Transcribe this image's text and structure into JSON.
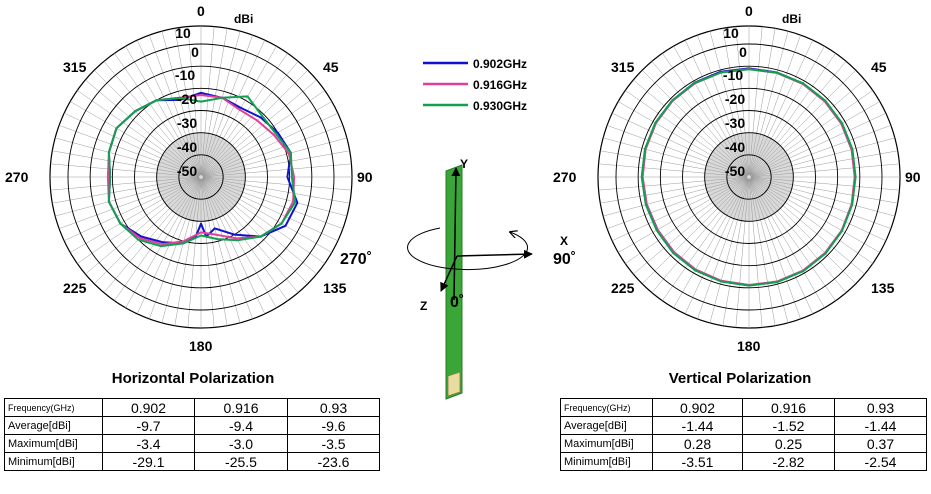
{
  "chart_data": [
    {
      "type": "polar",
      "title": "Horizontal Polarization",
      "unit_label": "dBi",
      "radial_tick_labels": [
        "10",
        "0",
        "-10",
        "-20",
        "-30",
        "-40",
        "-50"
      ],
      "radial_range": [
        -50,
        10
      ],
      "angle_labels": [
        "0",
        "45",
        "90",
        "135",
        "180",
        "225",
        "270",
        "315"
      ],
      "series": [
        {
          "name": "0.902GHz",
          "color": "#1010d0",
          "angles": [
            0,
            15,
            30,
            45,
            60,
            75,
            90,
            105,
            120,
            135,
            150,
            165,
            175,
            180,
            185,
            195,
            210,
            225,
            240,
            255,
            270,
            285,
            300,
            315,
            330,
            345,
            360
          ],
          "values": [
            -12,
            -13,
            -14,
            -12,
            -10,
            -8,
            -11,
            -5,
            -6,
            -12,
            -20,
            -26,
            -23,
            -29,
            -23,
            -19,
            -16,
            -12,
            -8,
            -7,
            -9,
            -7,
            -6,
            -8,
            -10,
            -14,
            -12
          ]
        },
        {
          "name": "0.916GHz",
          "color": "#e0409a",
          "angles": [
            0,
            15,
            30,
            45,
            60,
            75,
            90,
            105,
            120,
            135,
            150,
            165,
            180,
            195,
            210,
            225,
            240,
            255,
            270,
            285,
            300,
            315,
            330,
            345,
            360
          ],
          "values": [
            -13,
            -13,
            -15,
            -14,
            -12,
            -9,
            -8,
            -7,
            -8,
            -12,
            -18,
            -23,
            -25,
            -20,
            -15,
            -11,
            -8,
            -7,
            -8,
            -7,
            -6,
            -8,
            -10,
            -13,
            -13
          ]
        },
        {
          "name": "0.930GHz",
          "color": "#10a050",
          "angles": [
            0,
            15,
            30,
            45,
            60,
            75,
            90,
            105,
            120,
            135,
            150,
            165,
            180,
            195,
            210,
            225,
            240,
            255,
            270,
            285,
            300,
            315,
            330,
            345,
            360
          ],
          "values": [
            -16,
            -13,
            -8,
            -11,
            -11,
            -8,
            -9,
            -6,
            -8,
            -12,
            -17,
            -21,
            -23.6,
            -19,
            -14,
            -10,
            -8,
            -7,
            -9,
            -7,
            -6,
            -8,
            -10,
            -13,
            -16
          ]
        }
      ],
      "table": {
        "header": [
          "Frequency(GHz)",
          "0.902",
          "0.916",
          "0.93"
        ],
        "rows": [
          [
            "Average[dBi]",
            "-9.7",
            "-9.4",
            "-9.6"
          ],
          [
            "Maximum[dBi]",
            "-3.4",
            "-3.0",
            "-3.5"
          ],
          [
            "Minimum[dBi]",
            "-29.1",
            "-25.5",
            "-23.6"
          ]
        ]
      }
    },
    {
      "type": "polar",
      "title": "Vertical Polarization",
      "unit_label": "dBi",
      "radial_tick_labels": [
        "10",
        "0",
        "-10",
        "-20",
        "-30",
        "-40",
        "-50"
      ],
      "radial_range": [
        -50,
        10
      ],
      "angle_labels": [
        "0",
        "45",
        "90",
        "135",
        "180",
        "225",
        "270",
        "315"
      ],
      "series": [
        {
          "name": "0.902GHz",
          "color": "#1010d0",
          "angles": [
            0,
            15,
            30,
            45,
            60,
            75,
            90,
            105,
            120,
            135,
            150,
            165,
            180,
            195,
            210,
            225,
            240,
            255,
            270,
            285,
            300,
            315,
            330,
            345,
            360
          ],
          "values": [
            -1.0,
            -1.2,
            -1.3,
            -1.6,
            -1.8,
            -2.0,
            -2.2,
            -2.0,
            -1.6,
            -1.3,
            -1.1,
            -1.0,
            -1.2,
            -1.4,
            -1.7,
            -2.1,
            -2.4,
            -2.2,
            -1.9,
            -1.6,
            -1.3,
            -1.1,
            -0.9,
            -0.8,
            -1.0
          ]
        },
        {
          "name": "0.916GHz",
          "color": "#e0409a",
          "angles": [
            0,
            15,
            30,
            45,
            60,
            75,
            90,
            105,
            120,
            135,
            150,
            165,
            180,
            195,
            210,
            225,
            240,
            255,
            270,
            285,
            300,
            315,
            330,
            345,
            360
          ],
          "values": [
            -1.3,
            -1.4,
            -1.5,
            -1.7,
            -1.9,
            -2.1,
            -2.3,
            -2.1,
            -1.7,
            -1.5,
            -1.3,
            -1.2,
            -1.3,
            -1.5,
            -1.8,
            -2.0,
            -2.3,
            -2.2,
            -2.0,
            -1.7,
            -1.5,
            -1.3,
            -1.2,
            -1.2,
            -1.3
          ]
        },
        {
          "name": "0.930GHz",
          "color": "#10a050",
          "angles": [
            0,
            15,
            30,
            45,
            60,
            75,
            90,
            105,
            120,
            135,
            150,
            165,
            180,
            195,
            210,
            225,
            240,
            255,
            270,
            285,
            300,
            315,
            330,
            345,
            360
          ],
          "values": [
            -1.4,
            -1.3,
            -1.2,
            -1.3,
            -1.5,
            -1.7,
            -1.9,
            -1.8,
            -1.5,
            -1.2,
            -1.0,
            -0.9,
            -1.0,
            -1.2,
            -1.4,
            -1.6,
            -1.9,
            -1.8,
            -1.6,
            -1.4,
            -1.2,
            -1.1,
            -1.0,
            -1.2,
            -1.4
          ]
        }
      ],
      "table": {
        "header": [
          "Frequency(GHz)",
          "0.902",
          "0.916",
          "0.93"
        ],
        "rows": [
          [
            "Average[dBi]",
            "-1.44",
            "-1.52",
            "-1.44"
          ],
          [
            "Maximum[dBi]",
            "0.28",
            "0.25",
            "0.37"
          ],
          [
            "Minimum[dBi]",
            "-3.51",
            "-2.82",
            "-2.54"
          ]
        ]
      }
    }
  ],
  "legend": [
    {
      "label": "0.902GHz",
      "color": "#1010d0"
    },
    {
      "label": "0.916GHz",
      "color": "#e0409a"
    },
    {
      "label": "0.930GHz",
      "color": "#10a050"
    }
  ],
  "orientation": {
    "y_label": "Y",
    "x_label": "X",
    "z_label": "Z",
    "angle_270": "270˚",
    "angle_90": "90˚",
    "angle_0": "0˚"
  }
}
